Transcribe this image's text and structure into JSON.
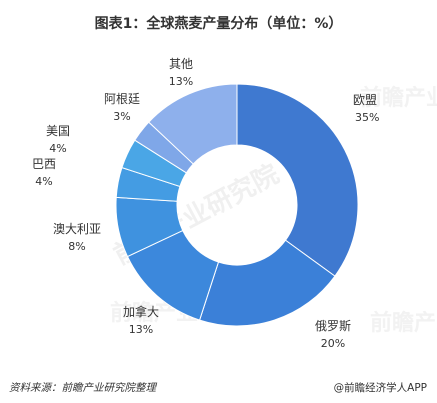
{
  "chart_data": {
    "type": "pie",
    "title": "图表1：全球燕麦产量分布（单位：%）",
    "slices": [
      {
        "label": "欧盟",
        "value": 35,
        "display": "35%",
        "color": "#3f79d0"
      },
      {
        "label": "俄罗斯",
        "value": 20,
        "display": "20%",
        "color": "#3b80d8"
      },
      {
        "label": "加拿大",
        "value": 13,
        "display": "13%",
        "color": "#3c88dc"
      },
      {
        "label": "澳大利亚",
        "value": 8,
        "display": "8%",
        "color": "#3f92df"
      },
      {
        "label": "巴西",
        "value": 4,
        "display": "4%",
        "color": "#449ce3"
      },
      {
        "label": "美国",
        "value": 4,
        "display": "4%",
        "color": "#4aa6e6"
      },
      {
        "label": "阿根廷",
        "value": 3,
        "display": "3%",
        "color": "#7fa7e8"
      },
      {
        "label": "其他",
        "value": 13,
        "display": "13%",
        "color": "#8eb0ec"
      }
    ]
  },
  "footer": {
    "source": "资料来源：前瞻产业研究院整理",
    "brand": "@前瞻经济学人APP"
  },
  "watermark": {
    "text": "前瞻产业研究院"
  }
}
